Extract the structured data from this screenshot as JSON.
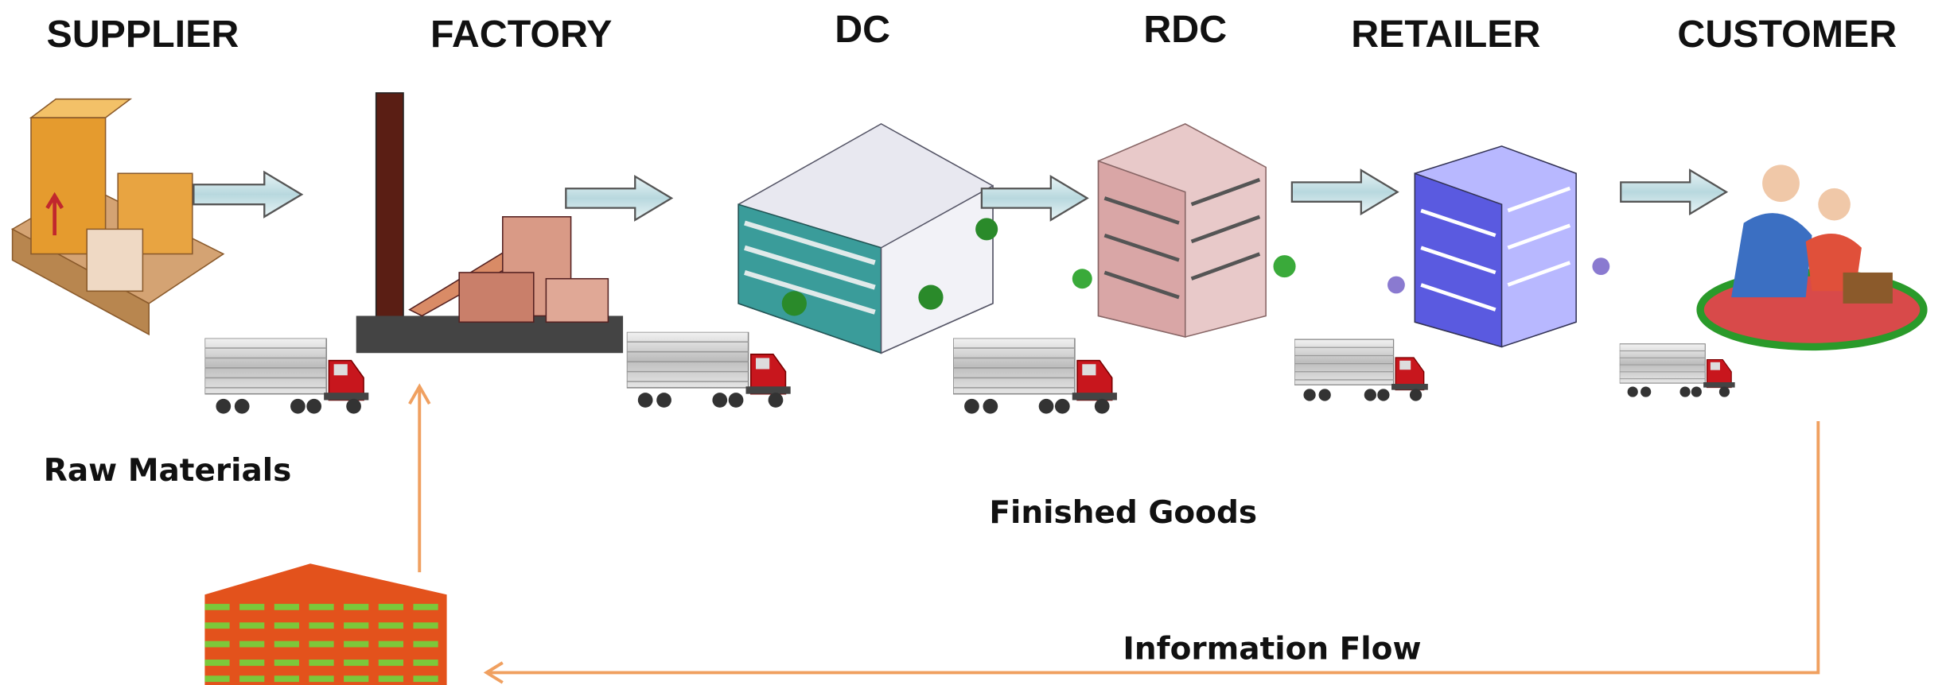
{
  "stages": [
    {
      "label": "SUPPLIER"
    },
    {
      "label": "FACTORY"
    },
    {
      "label": "DC"
    },
    {
      "label": "RDC"
    },
    {
      "label": "RETAILER"
    },
    {
      "label": "CUSTOMER"
    }
  ],
  "labels": {
    "raw_materials": "Raw Materials",
    "finished_goods": "Finished Goods",
    "information_flow": "Information Flow"
  }
}
